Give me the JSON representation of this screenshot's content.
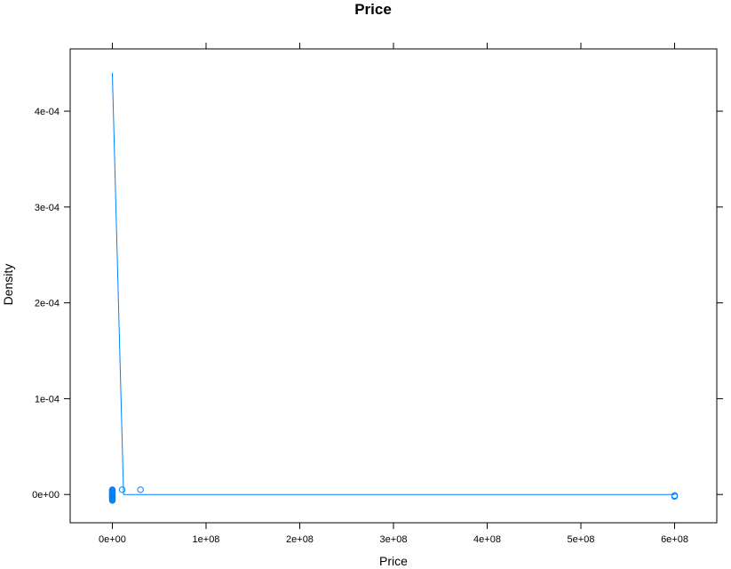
{
  "chart_data": {
    "type": "line",
    "title": "Price",
    "xlabel": "Price",
    "ylabel": "Density",
    "xlim": [
      -45000000,
      645000000
    ],
    "ylim": [
      -2.95e-05,
      0.000465
    ],
    "x_ticks": [
      {
        "value": 0,
        "label": "0e+00"
      },
      {
        "value": 100000000,
        "label": "1e+08"
      },
      {
        "value": 200000000,
        "label": "2e+08"
      },
      {
        "value": 300000000,
        "label": "3e+08"
      },
      {
        "value": 400000000,
        "label": "4e+08"
      },
      {
        "value": 500000000,
        "label": "5e+08"
      },
      {
        "value": 600000000,
        "label": "6e+08"
      }
    ],
    "y_ticks": [
      {
        "value": 0,
        "label": "0e+00"
      },
      {
        "value": 0.0001,
        "label": "1e-04"
      },
      {
        "value": 0.0002,
        "label": "2e-04"
      },
      {
        "value": 0.0003,
        "label": "3e-04"
      },
      {
        "value": 0.0004,
        "label": "4e-04"
      }
    ],
    "series": [
      {
        "kind": "density-line",
        "color": "#0080ff",
        "x": [
          0,
          12000000,
          600000000
        ],
        "y": [
          0.00044,
          0.0,
          0.0
        ]
      },
      {
        "kind": "rug-points",
        "color": "#0080ff",
        "x": [
          0,
          0,
          0,
          0,
          0,
          0,
          0,
          0,
          0,
          0,
          0,
          0,
          0,
          0,
          0,
          0,
          0,
          0,
          10500000,
          30000000,
          600000000,
          600000000
        ],
        "y": [
          5e-06,
          4.2e-06,
          3.4e-06,
          2.6e-06,
          1.8e-06,
          1e-06,
          2e-07,
          -6e-07,
          -1.4e-06,
          -2.2e-06,
          -3e-06,
          -3.8e-06,
          -4.6e-06,
          -5.4e-06,
          -6.2e-06,
          4.6e-06,
          1.2e-06,
          -2.8e-06,
          5e-06,
          5e-06,
          -1e-06,
          -2e-06
        ]
      }
    ]
  }
}
